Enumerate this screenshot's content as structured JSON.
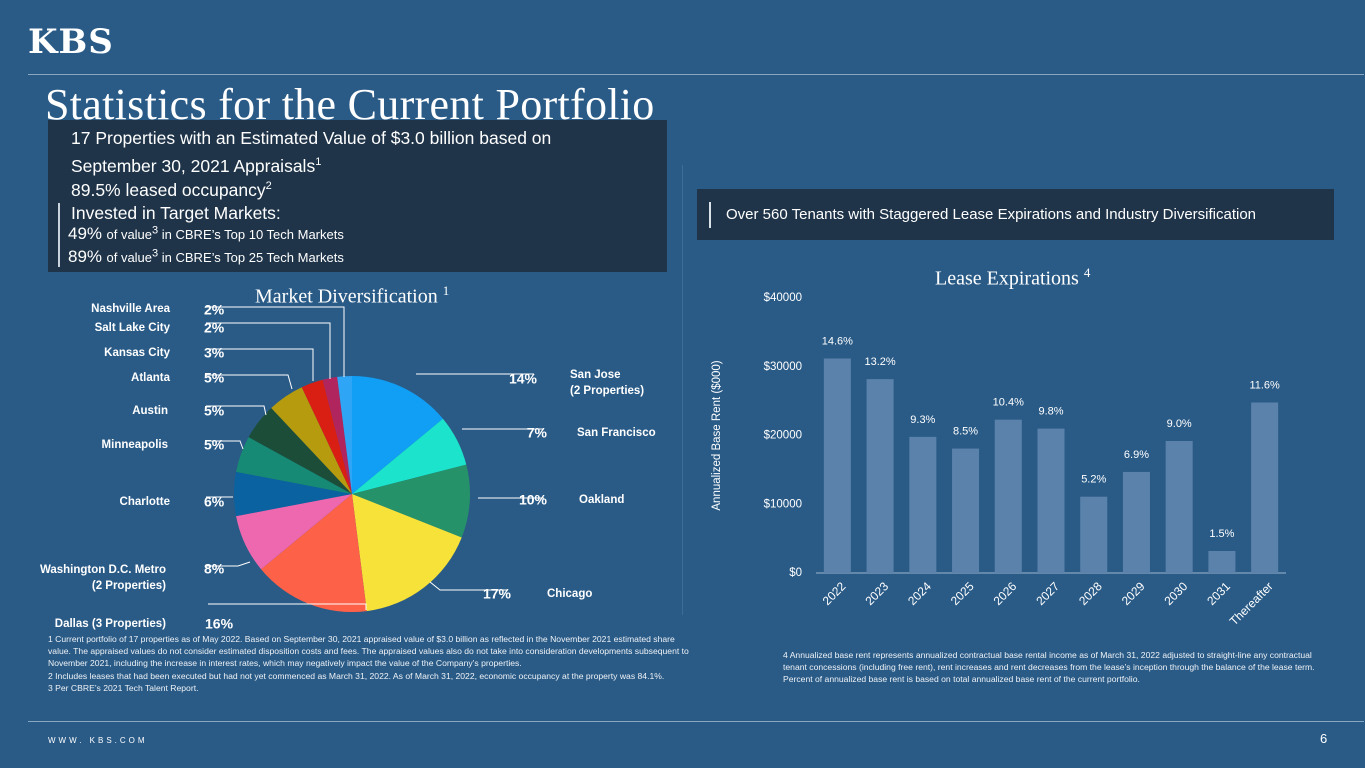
{
  "header": {
    "logo": "KBS",
    "title": "Statistics for the Current Portfolio"
  },
  "summary": {
    "line1": "17 Properties with an Estimated Value of $3.0 billion based on",
    "line2": "September 30, 2021 Appraisals",
    "line2_sup": "1",
    "line3": "89.5% leased occupancy",
    "line3_sup": "2",
    "invested_label": "Invested in Target Markets:",
    "top10_pct": "49%",
    "top10_pre": "of value",
    "top10_sup": "3",
    "top10_post": " in CBRE’s Top 10 Tech Markets",
    "top25_pct": "89%",
    "top25_pre": "of value",
    "top25_sup": "3",
    "top25_post": " in CBRE’s Top 25 Tech Markets"
  },
  "tenant_banner": "Over 560 Tenants with Staggered Lease Expirations and Industry Diversification",
  "chart_data": [
    {
      "type": "pie",
      "title": "Market Diversification",
      "title_sup": "1",
      "slices": [
        {
          "label": "San Jose",
          "sublabel": "(2 Properties)",
          "pct_label": "14%",
          "value": 14,
          "color": "#109ff5"
        },
        {
          "label": "San Francisco",
          "sublabel": "",
          "pct_label": "7%",
          "value": 7,
          "color": "#1ce3cc"
        },
        {
          "label": "Oakland",
          "sublabel": "",
          "pct_label": "10%",
          "value": 10,
          "color": "#26926a"
        },
        {
          "label": "Chicago",
          "sublabel": "",
          "pct_label": "17%",
          "value": 17,
          "color": "#f7e23a"
        },
        {
          "label": "Dallas (3 Properties)",
          "sublabel": "",
          "pct_label": "16%",
          "value": 16,
          "color": "#fd6148"
        },
        {
          "label": "Washington D.C. Metro",
          "sublabel": "(2 Properties)",
          "pct_label": "8%",
          "value": 8,
          "color": "#ee68b0"
        },
        {
          "label": "Charlotte",
          "sublabel": "",
          "pct_label": "6%",
          "value": 6,
          "color": "#0a62a0"
        },
        {
          "label": "Minneapolis",
          "sublabel": "",
          "pct_label": "5%",
          "value": 5,
          "color": "#168a74"
        },
        {
          "label": "Austin",
          "sublabel": "",
          "pct_label": "5%",
          "value": 5,
          "color": "#1b4d39"
        },
        {
          "label": "Atlanta",
          "sublabel": "",
          "pct_label": "5%",
          "value": 5,
          "color": "#b59b0d"
        },
        {
          "label": "Kansas City",
          "sublabel": "",
          "pct_label": "3%",
          "value": 3,
          "color": "#d91f14"
        },
        {
          "label": "Salt Lake City",
          "sublabel": "",
          "pct_label": "2%",
          "value": 2,
          "color": "#b1255f"
        },
        {
          "label": "Nashville Area",
          "sublabel": "",
          "pct_label": "2%",
          "value": 2,
          "color": "#2fa6f5"
        }
      ]
    },
    {
      "type": "bar",
      "title": "Lease Expirations",
      "title_sup": "4",
      "categories": [
        "2022",
        "2023",
        "2024",
        "2025",
        "2026",
        "2027",
        "2028",
        "2029",
        "2030",
        "2031",
        "Thereafter"
      ],
      "values": [
        31200,
        28200,
        19800,
        18100,
        22300,
        21000,
        11100,
        14700,
        19200,
        3200,
        24800
      ],
      "data_labels": [
        "14.6%",
        "13.2%",
        "9.3%",
        "8.5%",
        "10.4%",
        "9.8%",
        "5.2%",
        "6.9%",
        "9.0%",
        "1.5%",
        "11.6%"
      ],
      "ylabel": "Annualized Base Rent ($000)",
      "ylim": [
        0,
        40000
      ],
      "yticks": [
        0,
        10000,
        20000,
        30000,
        40000
      ],
      "ytick_labels": [
        "$0",
        "$10000",
        "$20000",
        "$30000",
        "$40000"
      ],
      "bar_color": "#5b82ab"
    }
  ],
  "footnotes_left": [
    "1 Current portfolio of 17 properties as of May 2022.  Based on September 30, 2021 appraised value of $3.0 billion as reflected in the November 2021 estimated share value. The appraised values do not consider estimated disposition costs and fees.  The appraised values also do not take into consideration developments subsequent to November 2021, including the increase in interest rates, which may negatively impact the value of the Company’s properties.",
    "2 Includes leases that had been executed but had not yet commenced as March 31, 2022.  As of March 31, 2022, economic occupancy at the property was 84.1%.",
    "3 Per CBRE’s 2021 Tech Talent Report."
  ],
  "footnote_right": "4 Annualized base rent represents annualized contractual base rental income as of  March 31, 2022 adjusted to straight-line any contractual tenant concessions (including free rent), rent increases and rent decreases from the lease’s inception through the balance of the lease term. Percent of annualized base rent is based on total annualized base rent of the current portfolio.",
  "footer": {
    "website": "WWW. KBS.COM",
    "page_number": "6"
  }
}
